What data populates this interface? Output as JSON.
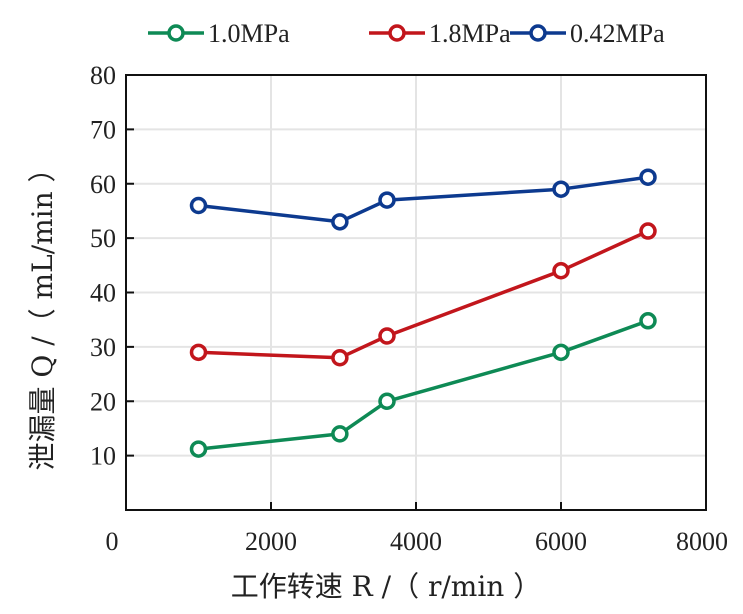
{
  "chart_data": {
    "type": "line",
    "title": "",
    "xlabel": "工作转速 R /（ r/min ）",
    "ylabel": "泄漏量 Q /（ mL/min ）",
    "xlim": [
      0,
      8000
    ],
    "ylim": [
      0,
      80
    ],
    "xticks": [
      0,
      2000,
      4000,
      6000,
      8000
    ],
    "yticks": [
      10,
      20,
      30,
      40,
      50,
      60,
      70,
      80
    ],
    "xtick_labels": [
      "0",
      "2000",
      "4000",
      "6000",
      "8000"
    ],
    "ytick_labels": [
      "10",
      "20",
      "30",
      "40",
      "50",
      "60",
      "70",
      "80"
    ],
    "grid": true,
    "legend_position": "top",
    "x": [
      1000,
      2950,
      3600,
      6000,
      7200
    ],
    "series": [
      {
        "name": "1.0MPa",
        "color": "#0e8a55",
        "values": [
          11.2,
          14,
          20,
          29,
          34.8
        ]
      },
      {
        "name": "1.8MPa",
        "color": "#c2161c",
        "values": [
          29,
          28,
          32,
          44,
          51.3
        ]
      },
      {
        "name": "0.42MPa",
        "color": "#0d3a8f",
        "values": [
          56,
          53,
          57,
          59,
          61.2
        ]
      }
    ]
  }
}
